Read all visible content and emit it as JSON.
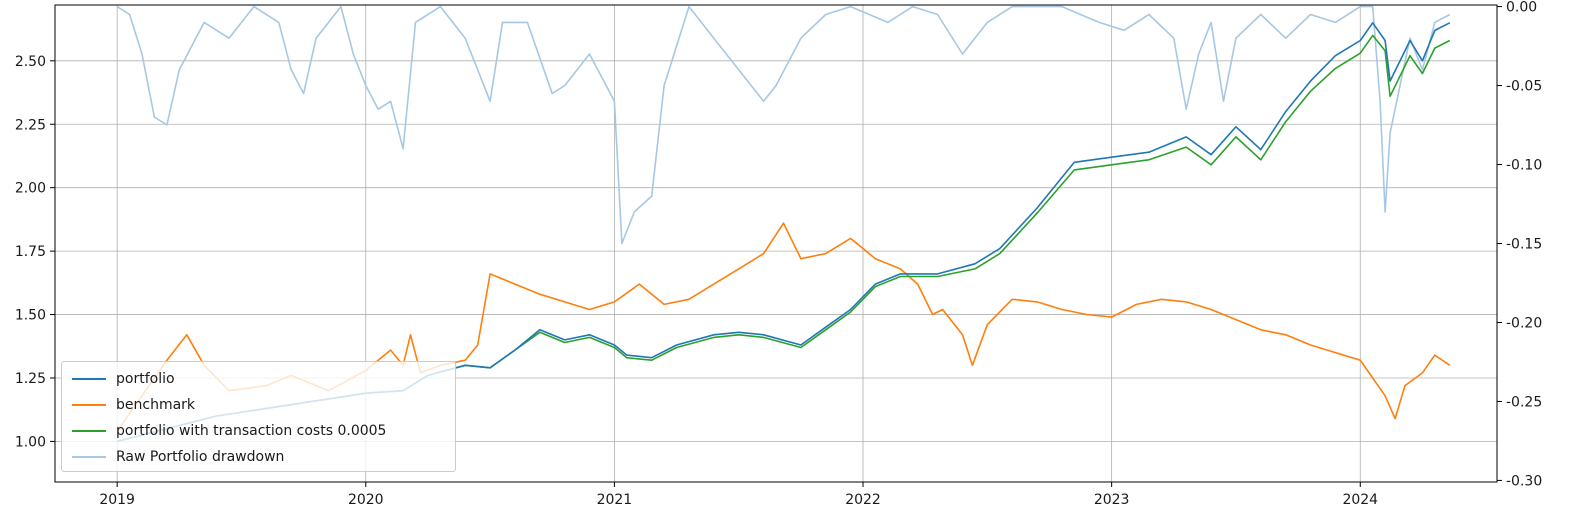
{
  "chart_data": {
    "type": "line",
    "x_ticks": [
      "2019",
      "2020",
      "2021",
      "2022",
      "2023",
      "2024"
    ],
    "y_left": {
      "ticks": [
        "1.00",
        "1.25",
        "1.50",
        "1.75",
        "2.00",
        "2.25",
        "2.50"
      ],
      "range": [
        0.84,
        2.72
      ]
    },
    "y_right": {
      "ticks": [
        "0.00",
        "-0.05",
        "-0.10",
        "-0.15",
        "-0.20",
        "-0.25",
        "-0.30"
      ],
      "range": [
        -0.301,
        0.001
      ]
    },
    "x_range": [
      2018.75,
      2024.55
    ],
    "grid": true,
    "legend_position": "lower left",
    "series": [
      {
        "name": "portfolio",
        "color": "#1f77b4",
        "axis": "left",
        "points": [
          [
            2019.0,
            1.0
          ],
          [
            2019.2,
            1.05
          ],
          [
            2019.4,
            1.1
          ],
          [
            2019.6,
            1.13
          ],
          [
            2019.8,
            1.16
          ],
          [
            2020.0,
            1.19
          ],
          [
            2020.15,
            1.2
          ],
          [
            2020.25,
            1.26
          ],
          [
            2020.4,
            1.3
          ],
          [
            2020.5,
            1.29
          ],
          [
            2020.6,
            1.36
          ],
          [
            2020.7,
            1.44
          ],
          [
            2020.8,
            1.4
          ],
          [
            2020.9,
            1.42
          ],
          [
            2021.0,
            1.38
          ],
          [
            2021.05,
            1.34
          ],
          [
            2021.15,
            1.33
          ],
          [
            2021.25,
            1.38
          ],
          [
            2021.4,
            1.42
          ],
          [
            2021.5,
            1.43
          ],
          [
            2021.6,
            1.42
          ],
          [
            2021.75,
            1.38
          ],
          [
            2021.85,
            1.45
          ],
          [
            2021.95,
            1.52
          ],
          [
            2022.05,
            1.62
          ],
          [
            2022.15,
            1.66
          ],
          [
            2022.3,
            1.66
          ],
          [
            2022.45,
            1.7
          ],
          [
            2022.55,
            1.76
          ],
          [
            2022.7,
            1.92
          ],
          [
            2022.85,
            2.1
          ],
          [
            2023.0,
            2.12
          ],
          [
            2023.15,
            2.14
          ],
          [
            2023.3,
            2.2
          ],
          [
            2023.4,
            2.13
          ],
          [
            2023.5,
            2.24
          ],
          [
            2023.6,
            2.15
          ],
          [
            2023.7,
            2.3
          ],
          [
            2023.8,
            2.42
          ],
          [
            2023.9,
            2.52
          ],
          [
            2024.0,
            2.58
          ],
          [
            2024.05,
            2.65
          ],
          [
            2024.1,
            2.58
          ],
          [
            2024.12,
            2.42
          ],
          [
            2024.2,
            2.58
          ],
          [
            2024.25,
            2.5
          ],
          [
            2024.3,
            2.62
          ],
          [
            2024.36,
            2.65
          ]
        ]
      },
      {
        "name": "benchmark",
        "color": "#ff7f0e",
        "axis": "left",
        "points": [
          [
            2019.0,
            1.04
          ],
          [
            2019.1,
            1.18
          ],
          [
            2019.2,
            1.32
          ],
          [
            2019.28,
            1.42
          ],
          [
            2019.35,
            1.3
          ],
          [
            2019.45,
            1.2
          ],
          [
            2019.6,
            1.22
          ],
          [
            2019.7,
            1.26
          ],
          [
            2019.85,
            1.2
          ],
          [
            2020.0,
            1.28
          ],
          [
            2020.1,
            1.36
          ],
          [
            2020.15,
            1.3
          ],
          [
            2020.18,
            1.42
          ],
          [
            2020.22,
            1.27
          ],
          [
            2020.3,
            1.3
          ],
          [
            2020.4,
            1.32
          ],
          [
            2020.45,
            1.38
          ],
          [
            2020.5,
            1.66
          ],
          [
            2020.6,
            1.62
          ],
          [
            2020.7,
            1.58
          ],
          [
            2020.8,
            1.55
          ],
          [
            2020.9,
            1.52
          ],
          [
            2021.0,
            1.55
          ],
          [
            2021.1,
            1.62
          ],
          [
            2021.2,
            1.54
          ],
          [
            2021.3,
            1.56
          ],
          [
            2021.4,
            1.62
          ],
          [
            2021.5,
            1.68
          ],
          [
            2021.6,
            1.74
          ],
          [
            2021.68,
            1.86
          ],
          [
            2021.75,
            1.72
          ],
          [
            2021.85,
            1.74
          ],
          [
            2021.95,
            1.8
          ],
          [
            2022.05,
            1.72
          ],
          [
            2022.15,
            1.68
          ],
          [
            2022.22,
            1.62
          ],
          [
            2022.28,
            1.5
          ],
          [
            2022.32,
            1.52
          ],
          [
            2022.4,
            1.42
          ],
          [
            2022.44,
            1.3
          ],
          [
            2022.5,
            1.46
          ],
          [
            2022.6,
            1.56
          ],
          [
            2022.7,
            1.55
          ],
          [
            2022.8,
            1.52
          ],
          [
            2022.9,
            1.5
          ],
          [
            2023.0,
            1.49
          ],
          [
            2023.1,
            1.54
          ],
          [
            2023.2,
            1.56
          ],
          [
            2023.3,
            1.55
          ],
          [
            2023.4,
            1.52
          ],
          [
            2023.5,
            1.48
          ],
          [
            2023.6,
            1.44
          ],
          [
            2023.7,
            1.42
          ],
          [
            2023.8,
            1.38
          ],
          [
            2023.9,
            1.35
          ],
          [
            2024.0,
            1.32
          ],
          [
            2024.05,
            1.25
          ],
          [
            2024.1,
            1.18
          ],
          [
            2024.14,
            1.09
          ],
          [
            2024.18,
            1.22
          ],
          [
            2024.25,
            1.27
          ],
          [
            2024.3,
            1.34
          ],
          [
            2024.36,
            1.3
          ]
        ]
      },
      {
        "name": "portfolio with transaction costs 0.0005",
        "color": "#2ca02c",
        "axis": "left",
        "points": [
          [
            2019.0,
            1.0
          ],
          [
            2019.2,
            1.05
          ],
          [
            2019.4,
            1.1
          ],
          [
            2019.6,
            1.13
          ],
          [
            2019.8,
            1.16
          ],
          [
            2020.0,
            1.19
          ],
          [
            2020.15,
            1.2
          ],
          [
            2020.25,
            1.26
          ],
          [
            2020.4,
            1.3
          ],
          [
            2020.5,
            1.29
          ],
          [
            2020.6,
            1.36
          ],
          [
            2020.7,
            1.43
          ],
          [
            2020.8,
            1.39
          ],
          [
            2020.9,
            1.41
          ],
          [
            2021.0,
            1.37
          ],
          [
            2021.05,
            1.33
          ],
          [
            2021.15,
            1.32
          ],
          [
            2021.25,
            1.37
          ],
          [
            2021.4,
            1.41
          ],
          [
            2021.5,
            1.42
          ],
          [
            2021.6,
            1.41
          ],
          [
            2021.75,
            1.37
          ],
          [
            2021.85,
            1.44
          ],
          [
            2021.95,
            1.51
          ],
          [
            2022.05,
            1.61
          ],
          [
            2022.15,
            1.65
          ],
          [
            2022.3,
            1.65
          ],
          [
            2022.45,
            1.68
          ],
          [
            2022.55,
            1.74
          ],
          [
            2022.7,
            1.9
          ],
          [
            2022.85,
            2.07
          ],
          [
            2023.0,
            2.09
          ],
          [
            2023.15,
            2.11
          ],
          [
            2023.3,
            2.16
          ],
          [
            2023.4,
            2.09
          ],
          [
            2023.5,
            2.2
          ],
          [
            2023.6,
            2.11
          ],
          [
            2023.7,
            2.26
          ],
          [
            2023.8,
            2.38
          ],
          [
            2023.9,
            2.47
          ],
          [
            2024.0,
            2.53
          ],
          [
            2024.05,
            2.6
          ],
          [
            2024.1,
            2.54
          ],
          [
            2024.12,
            2.36
          ],
          [
            2024.2,
            2.52
          ],
          [
            2024.25,
            2.45
          ],
          [
            2024.3,
            2.55
          ],
          [
            2024.36,
            2.58
          ]
        ]
      },
      {
        "name": "Raw Portfolio drawdown",
        "color": "#a6c8e4",
        "axis": "right",
        "points": [
          [
            2019.0,
            0.0
          ],
          [
            2019.05,
            -0.005
          ],
          [
            2019.1,
            -0.03
          ],
          [
            2019.15,
            -0.07
          ],
          [
            2019.2,
            -0.075
          ],
          [
            2019.25,
            -0.04
          ],
          [
            2019.35,
            -0.01
          ],
          [
            2019.45,
            -0.02
          ],
          [
            2019.55,
            0.0
          ],
          [
            2019.65,
            -0.01
          ],
          [
            2019.7,
            -0.04
          ],
          [
            2019.75,
            -0.055
          ],
          [
            2019.8,
            -0.02
          ],
          [
            2019.9,
            0.0
          ],
          [
            2019.95,
            -0.03
          ],
          [
            2020.0,
            -0.05
          ],
          [
            2020.05,
            -0.065
          ],
          [
            2020.1,
            -0.06
          ],
          [
            2020.15,
            -0.09
          ],
          [
            2020.2,
            -0.01
          ],
          [
            2020.3,
            0.0
          ],
          [
            2020.4,
            -0.02
          ],
          [
            2020.5,
            -0.06
          ],
          [
            2020.55,
            -0.01
          ],
          [
            2020.65,
            -0.01
          ],
          [
            2020.75,
            -0.055
          ],
          [
            2020.8,
            -0.05
          ],
          [
            2020.9,
            -0.03
          ],
          [
            2021.0,
            -0.06
          ],
          [
            2021.03,
            -0.15
          ],
          [
            2021.08,
            -0.13
          ],
          [
            2021.15,
            -0.12
          ],
          [
            2021.2,
            -0.05
          ],
          [
            2021.3,
            0.0
          ],
          [
            2021.4,
            -0.02
          ],
          [
            2021.5,
            -0.04
          ],
          [
            2021.6,
            -0.06
          ],
          [
            2021.65,
            -0.05
          ],
          [
            2021.75,
            -0.02
          ],
          [
            2021.85,
            -0.005
          ],
          [
            2021.95,
            0.0
          ],
          [
            2022.1,
            -0.01
          ],
          [
            2022.2,
            0.0
          ],
          [
            2022.3,
            -0.005
          ],
          [
            2022.4,
            -0.03
          ],
          [
            2022.5,
            -0.01
          ],
          [
            2022.6,
            0.0
          ],
          [
            2022.8,
            0.0
          ],
          [
            2022.95,
            -0.01
          ],
          [
            2023.05,
            -0.015
          ],
          [
            2023.15,
            -0.005
          ],
          [
            2023.25,
            -0.02
          ],
          [
            2023.3,
            -0.065
          ],
          [
            2023.35,
            -0.03
          ],
          [
            2023.4,
            -0.01
          ],
          [
            2023.45,
            -0.06
          ],
          [
            2023.5,
            -0.02
          ],
          [
            2023.6,
            -0.005
          ],
          [
            2023.7,
            -0.02
          ],
          [
            2023.8,
            -0.005
          ],
          [
            2023.9,
            -0.01
          ],
          [
            2024.0,
            0.0
          ],
          [
            2024.05,
            0.0
          ],
          [
            2024.08,
            -0.06
          ],
          [
            2024.1,
            -0.13
          ],
          [
            2024.12,
            -0.08
          ],
          [
            2024.16,
            -0.05
          ],
          [
            2024.2,
            -0.02
          ],
          [
            2024.25,
            -0.04
          ],
          [
            2024.3,
            -0.01
          ],
          [
            2024.36,
            -0.005
          ]
        ]
      }
    ]
  }
}
